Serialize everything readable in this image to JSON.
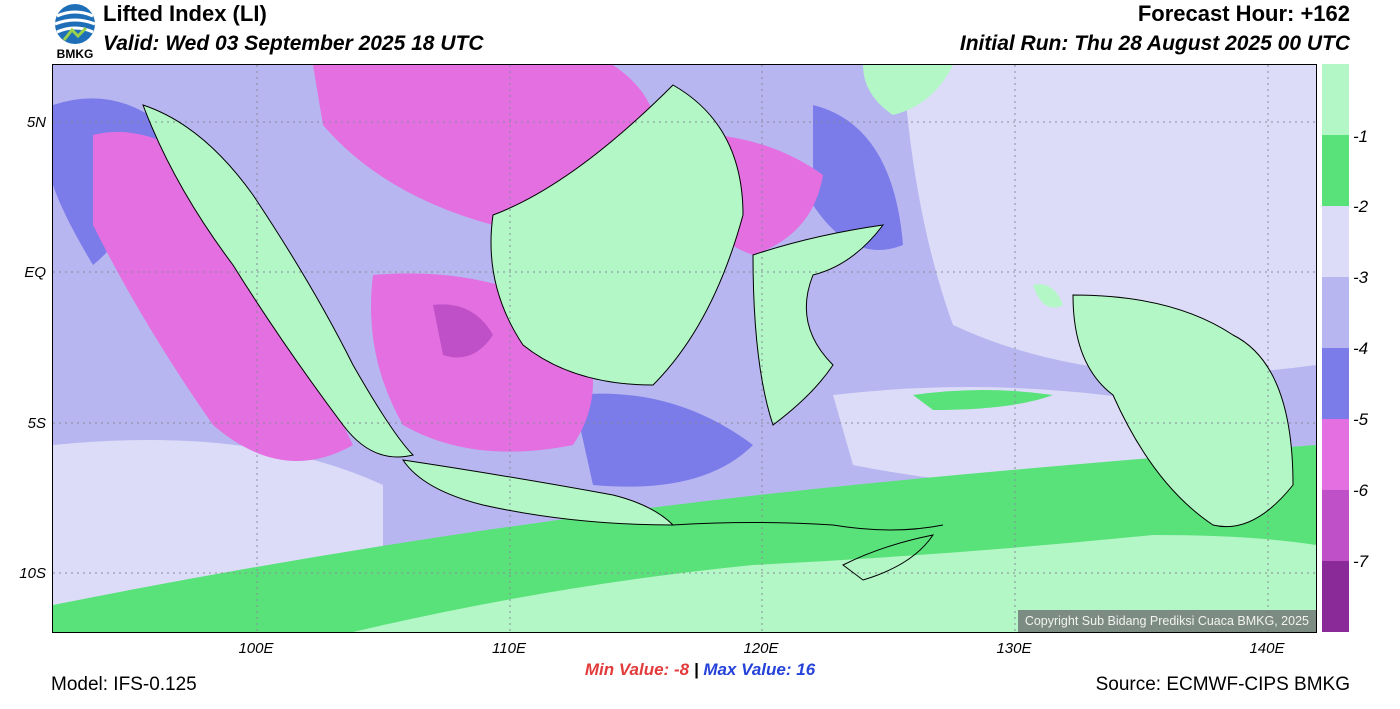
{
  "header": {
    "title": "Lifted Index (LI)",
    "valid": "Valid: Wed 03 September 2025 18 UTC",
    "forecast_hour": "Forecast Hour: +162",
    "initial_run": "Initial Run: Thu 28 August 2025 00 UTC",
    "logo_text": "BMKG"
  },
  "map": {
    "lat_labels": [
      "5N",
      "EQ",
      "5S",
      "10S"
    ],
    "lon_labels": [
      "100E",
      "110E",
      "120E",
      "130E",
      "140E"
    ],
    "copyright": "Copyright Sub Bidang Prediksi Cuaca BMKG, 2025",
    "extent": {
      "lon_min": 92,
      "lon_max": 142,
      "lat_min": -12,
      "lat_max": 7
    },
    "grid": "dotted"
  },
  "colorbar": {
    "labels": [
      "-1",
      "-2",
      "-3",
      "-4",
      "-5",
      "-6",
      "-7"
    ],
    "colors": [
      "#b3f7c6",
      "#5ae27a",
      "#dcdcf8",
      "#b7b6f0",
      "#7b7bea",
      "#e46fe0",
      "#c050c8",
      "#8a2a98"
    ]
  },
  "stats": {
    "min_label": "Min Value:",
    "min_value": "-8",
    "separator": "|",
    "max_label": "Max Value:",
    "max_value": "16"
  },
  "footer": {
    "model": "Model: IFS-0.125",
    "source": "Source: ECMWF-CIPS BMKG"
  }
}
